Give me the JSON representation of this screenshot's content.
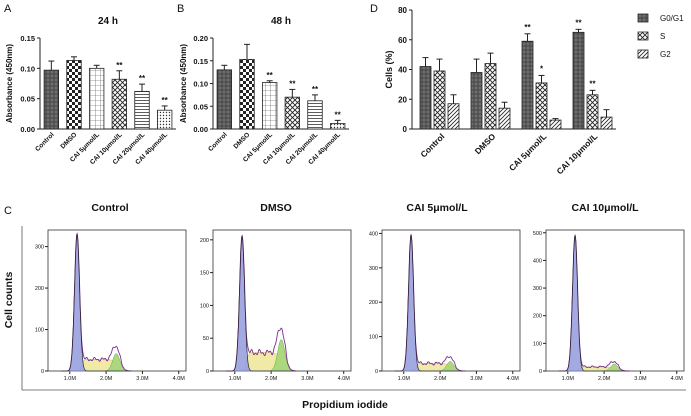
{
  "panel_labels": [
    "A",
    "B",
    "C",
    "D"
  ],
  "chart_data": [
    {
      "id": "A",
      "type": "bar",
      "title": "24 h",
      "ylabel": "Absorbance (450nm)",
      "ylim": [
        0,
        0.15
      ],
      "yticks": [
        "0.00",
        "0.05",
        "0.10",
        "0.15"
      ],
      "ytick_values": [
        0,
        0.05,
        0.1,
        0.15
      ],
      "categories": [
        "Control",
        "DMSO",
        "CAI 5μmol/L",
        "CAI 10μmol/L",
        "CAI 20μmol/L",
        "CAI 40μmol/L"
      ],
      "values": [
        0.097,
        0.113,
        0.1,
        0.082,
        0.062,
        0.031
      ],
      "errors": [
        0.015,
        0.006,
        0.005,
        0.014,
        0.012,
        0.007
      ],
      "significance": [
        "",
        "",
        "",
        "**",
        "**",
        "**"
      ]
    },
    {
      "id": "B",
      "type": "bar",
      "title": "48 h",
      "ylabel": "Absorbance (450nm)",
      "ylim": [
        0,
        0.2
      ],
      "yticks": [
        "0.00",
        "0.05",
        "0.10",
        "0.15",
        "0.20"
      ],
      "ytick_values": [
        0,
        0.05,
        0.1,
        0.15,
        0.2
      ],
      "categories": [
        "Control",
        "DMSO",
        "CAI 5μmol/L",
        "CAI 10μmol/L",
        "CAI 20μmol/L",
        "CAI 40μmol/L"
      ],
      "values": [
        0.13,
        0.153,
        0.102,
        0.07,
        0.062,
        0.012
      ],
      "errors": [
        0.01,
        0.033,
        0.004,
        0.017,
        0.013,
        0.007
      ],
      "significance": [
        "",
        "",
        "**",
        "**",
        "**",
        "**"
      ]
    },
    {
      "id": "D",
      "type": "bar",
      "ylabel": "Cells (%)",
      "ylim": [
        0,
        80
      ],
      "yticks": [
        "0",
        "20",
        "40",
        "60",
        "80"
      ],
      "ytick_values": [
        0,
        20,
        40,
        60,
        80
      ],
      "categories": [
        "Control",
        "DMSO",
        "CAI 5μmol/L",
        "CAI 10μmol/L"
      ],
      "series": [
        {
          "name": "G0/G1",
          "values": [
            42,
            38,
            59,
            65
          ],
          "errors": [
            6,
            9,
            5,
            2
          ],
          "significance": [
            "",
            "",
            "**",
            "**"
          ]
        },
        {
          "name": "S",
          "values": [
            39,
            44,
            31,
            23
          ],
          "errors": [
            8,
            7,
            5,
            3
          ],
          "significance": [
            "",
            "",
            "*",
            "**"
          ]
        },
        {
          "name": "G2",
          "values": [
            17,
            14,
            6,
            8
          ],
          "errors": [
            6,
            4,
            1,
            5
          ],
          "significance": [
            "",
            "",
            "",
            ""
          ]
        }
      ]
    },
    {
      "id": "C",
      "type": "histogram",
      "xlabel": "Propidium iodide",
      "ylabel": "Cell counts",
      "xticks": [
        "1.0M",
        "2.0M",
        "3.0M",
        "4.0M"
      ],
      "xtick_values": [
        1,
        2,
        3,
        4
      ],
      "xlim": [
        0.4,
        4.2
      ],
      "subplots": [
        {
          "title": "Control",
          "ymax": 340,
          "yticks": [
            "0",
            "100",
            "200",
            "300"
          ],
          "ytick_values": [
            0,
            100,
            200,
            300
          ],
          "peak1": {
            "pos": 1.2,
            "height": 330,
            "width": 0.07
          },
          "peak2": {
            "pos": 2.28,
            "height": 42,
            "width": 0.1
          },
          "plateau": 28
        },
        {
          "title": "DMSO",
          "ymax": 215,
          "yticks": [
            "0",
            "50",
            "100",
            "150",
            "200"
          ],
          "ytick_values": [
            0,
            50,
            100,
            150,
            200
          ],
          "peak1": {
            "pos": 1.2,
            "height": 205,
            "width": 0.07
          },
          "peak2": {
            "pos": 2.28,
            "height": 48,
            "width": 0.1
          },
          "plateau": 28
        },
        {
          "title": "CAI 5μmol/L",
          "ymax": 410,
          "yticks": [
            "0",
            "100",
            "200",
            "300",
            "400"
          ],
          "ytick_values": [
            0,
            100,
            200,
            300,
            400
          ],
          "peak1": {
            "pos": 1.2,
            "height": 395,
            "width": 0.07
          },
          "peak2": {
            "pos": 2.28,
            "height": 28,
            "width": 0.1
          },
          "plateau": 22
        },
        {
          "title": "CAI 10μmol/L",
          "ymax": 510,
          "yticks": [
            "0",
            "100",
            "200",
            "300",
            "400",
            "500"
          ],
          "ytick_values": [
            0,
            100,
            200,
            300,
            400,
            500
          ],
          "peak1": {
            "pos": 1.2,
            "height": 490,
            "width": 0.07
          },
          "peak2": {
            "pos": 2.28,
            "height": 25,
            "width": 0.1
          },
          "plateau": 15
        }
      ]
    }
  ],
  "colors": {
    "blue_fill": "#9aa0de",
    "yellow_fill": "#f1eaa6",
    "green_fill": "#a9d67a",
    "trace": "#7a2d8a",
    "bar_dark": "#555555"
  }
}
